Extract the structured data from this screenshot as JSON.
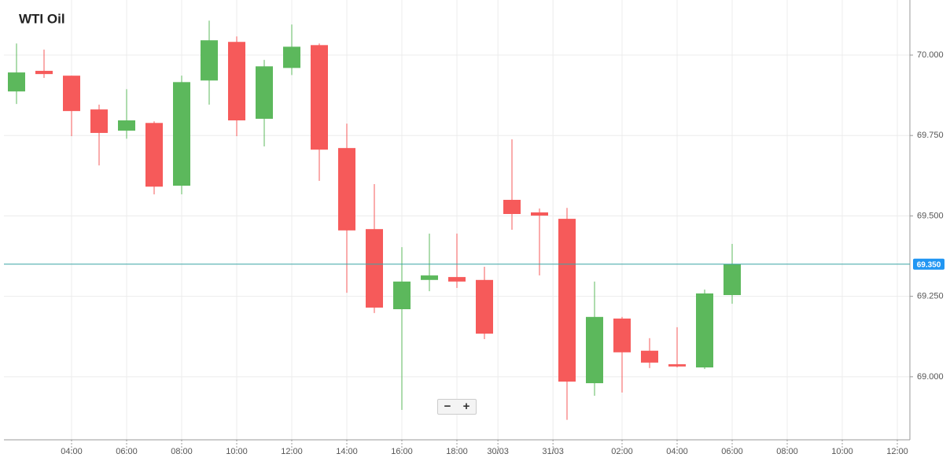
{
  "chart_data": {
    "type": "candlestick",
    "title": "WTI Oil",
    "x": [
      0,
      1,
      2,
      3,
      4,
      5,
      6,
      7,
      8,
      9,
      10,
      11,
      12,
      13,
      14,
      15,
      16,
      17,
      18,
      19,
      20,
      21,
      22,
      23,
      24,
      25,
      26
    ],
    "open": [
      69.887,
      69.951,
      69.936,
      69.831,
      69.765,
      69.789,
      69.594,
      69.921,
      70.041,
      69.802,
      69.96,
      70.031,
      69.711,
      69.459,
      69.21,
      69.301,
      69.31,
      69.301,
      69.55,
      69.511,
      69.491,
      68.98,
      69.181,
      69.081,
      69.039,
      69.029,
      69.254
    ],
    "high": [
      70.036,
      70.017,
      69.936,
      69.846,
      69.894,
      69.794,
      69.936,
      70.107,
      70.058,
      69.985,
      70.095,
      70.036,
      69.787,
      69.599,
      69.403,
      69.445,
      69.445,
      69.342,
      69.738,
      69.523,
      69.525,
      69.296,
      69.186,
      69.12,
      69.154,
      69.271,
      69.413
    ],
    "low": [
      69.848,
      69.929,
      69.748,
      69.657,
      69.74,
      69.567,
      69.567,
      69.846,
      69.748,
      69.716,
      69.938,
      69.609,
      69.261,
      69.198,
      68.897,
      69.266,
      69.276,
      69.117,
      69.457,
      69.315,
      68.866,
      68.941,
      68.951,
      69.027,
      69.029,
      69.024,
      69.227
    ],
    "close": [
      69.946,
      69.941,
      69.826,
      69.758,
      69.797,
      69.591,
      69.916,
      70.046,
      69.797,
      69.965,
      70.026,
      69.706,
      69.455,
      69.215,
      69.296,
      69.315,
      69.296,
      69.134,
      69.506,
      69.501,
      68.985,
      69.186,
      69.076,
      69.044,
      69.032,
      69.259,
      69.35
    ],
    "up_color": "#5cb85c",
    "down_color": "#f65a5a",
    "xlim": [
      -0.457,
      32.457
    ],
    "xticks": [
      {
        "value": 2,
        "label": "04:00"
      },
      {
        "value": 4,
        "label": "06:00"
      },
      {
        "value": 6,
        "label": "08:00"
      },
      {
        "value": 8,
        "label": "10:00"
      },
      {
        "value": 10,
        "label": "12:00"
      },
      {
        "value": 12,
        "label": "14:00"
      },
      {
        "value": 14,
        "label": "16:00"
      },
      {
        "value": 16,
        "label": "18:00"
      },
      {
        "value": 17.49,
        "label": "30/03"
      },
      {
        "value": 19.49,
        "label": "31/03"
      },
      {
        "value": 22,
        "label": "02:00"
      },
      {
        "value": 24,
        "label": "04:00"
      },
      {
        "value": 26,
        "label": "06:00"
      },
      {
        "value": 28,
        "label": "08:00"
      },
      {
        "value": 30,
        "label": "10:00"
      },
      {
        "value": 32,
        "label": "12:00"
      }
    ],
    "ylim": [
      68.804,
      70.159
    ],
    "yticks": [
      {
        "value": 69,
        "label": "69.000"
      },
      {
        "value": 69.25,
        "label": "69.250"
      },
      {
        "value": 69.5,
        "label": "69.500"
      },
      {
        "value": 69.75,
        "label": "69.750"
      },
      {
        "value": 70,
        "label": "70.000"
      }
    ],
    "grid": true,
    "current": {
      "value": 69.35,
      "label": "69.350",
      "color": "#3aa6a6",
      "label_color": "#2196f3"
    }
  },
  "controls": [
    "−",
    "+"
  ]
}
